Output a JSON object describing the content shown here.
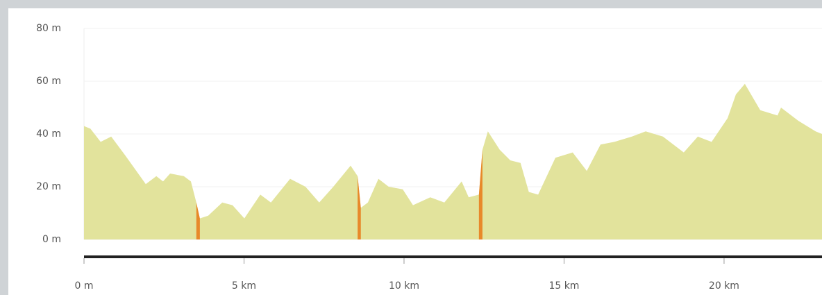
{
  "chart_data": {
    "type": "area",
    "color": "#e2e39c",
    "steep_color": "#e8892a",
    "grid": true,
    "x": [
      0,
      0.2,
      0.52,
      0.85,
      1.28,
      1.93,
      2.26,
      2.47,
      2.69,
      3.12,
      3.34,
      3.51,
      3.62,
      3.88,
      4.32,
      4.64,
      5.01,
      5.51,
      5.84,
      6.44,
      6.92,
      7.35,
      7.79,
      8.33,
      8.55,
      8.65,
      8.87,
      9.2,
      9.52,
      9.96,
      10.28,
      10.82,
      11.26,
      11.8,
      12.02,
      12.34,
      12.45,
      12.62,
      12.99,
      13.32,
      13.64,
      13.9,
      14.19,
      14.73,
      15.27,
      15.71,
      16.14,
      16.57,
      17.12,
      17.55,
      18.09,
      18.74,
      19.18,
      19.61,
      20.11,
      20.37,
      20.65,
      21.13,
      21.67,
      21.78,
      22.32,
      22.86,
      23.06
    ],
    "series": [
      {
        "values": [
          43,
          42,
          37,
          39,
          32,
          21,
          24,
          22,
          25,
          24,
          22,
          14,
          8,
          9,
          14,
          13,
          8,
          17,
          14,
          23,
          20,
          14,
          20,
          28,
          24,
          12,
          14,
          23,
          20,
          19,
          13,
          16,
          14,
          22,
          16,
          17,
          34,
          41,
          34,
          30,
          29,
          18,
          17,
          31,
          33,
          26,
          36,
          37,
          39,
          41,
          39,
          33,
          39,
          37,
          46,
          55,
          59,
          49,
          47,
          50,
          45,
          41,
          40
        ]
      }
    ],
    "xlim": [
      0,
      23.06
    ],
    "ylim": [
      0,
      80
    ],
    "xticks": [
      {
        "value": 0,
        "label": "0 m"
      },
      {
        "value": 5,
        "label": "5 km"
      },
      {
        "value": 10,
        "label": "10 km"
      },
      {
        "value": 15,
        "label": "15 km"
      },
      {
        "value": 20,
        "label": "20 km"
      }
    ],
    "yticks": [
      {
        "value": 0,
        "label": "0 m"
      },
      {
        "value": 20,
        "label": "20 m"
      },
      {
        "value": 40,
        "label": "40 m"
      },
      {
        "value": 60,
        "label": "60 m"
      },
      {
        "value": 80,
        "label": "80 m"
      }
    ]
  }
}
